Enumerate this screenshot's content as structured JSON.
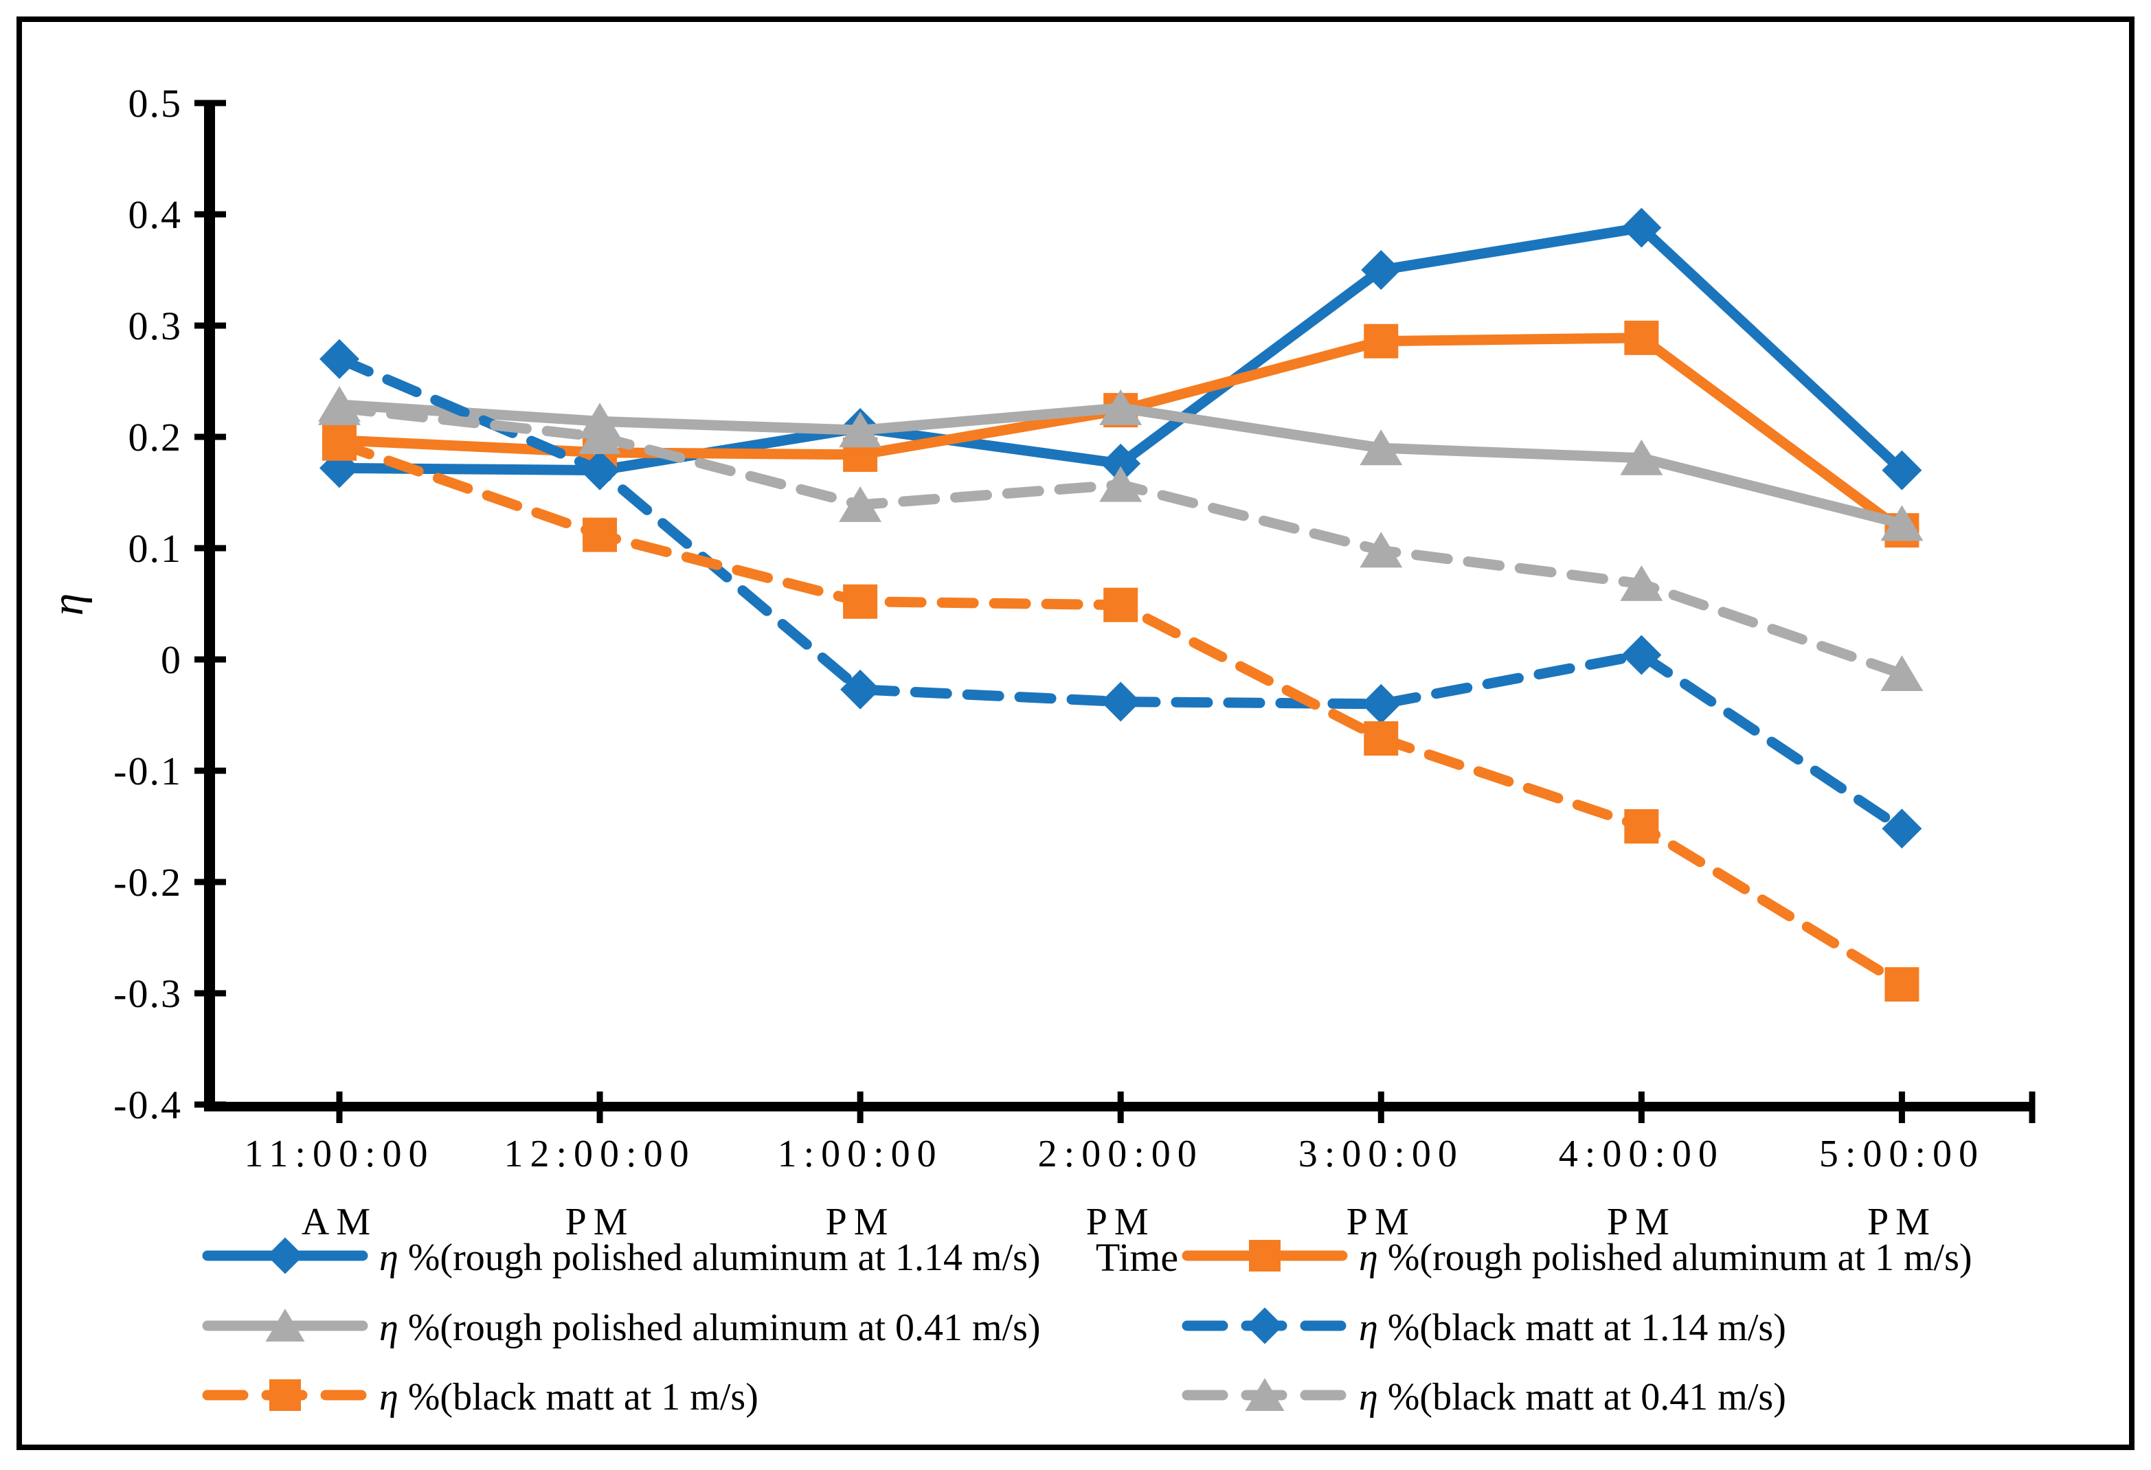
{
  "chart_data": {
    "type": "line",
    "title": "",
    "xlabel": "Time",
    "ylabel": "η",
    "ylim": [
      -0.4,
      0.5
    ],
    "ytick_interval": 0.1,
    "ytick_labels": [
      "0.5",
      "0.4",
      "0.3",
      "0.2",
      "0.1",
      "0",
      "-0.1",
      "-0.2",
      "-0.3",
      "-0.4"
    ],
    "categories": [
      {
        "time": "11:00:00",
        "meridiem": "AM"
      },
      {
        "time": "12:00:00",
        "meridiem": "PM"
      },
      {
        "time": "1:00:00",
        "meridiem": "PM"
      },
      {
        "time": "2:00:00",
        "meridiem": "PM"
      },
      {
        "time": "3:00:00",
        "meridiem": "PM"
      },
      {
        "time": "4:00:00",
        "meridiem": "PM"
      },
      {
        "time": "5:00:00",
        "meridiem": "PM"
      }
    ],
    "gridlines": false,
    "legend_position": "bottom-two-columns",
    "colors": {
      "blue": "#1B75BC",
      "orange": "#F57C20",
      "gray": "#ABABAB",
      "axis": "#000000"
    },
    "series": [
      {
        "name": "η %(rough polished aluminum at 1.14 m/s)",
        "color": "blue",
        "line": "solid",
        "marker": "diamond",
        "values": [
          0.172,
          0.17,
          0.208,
          0.176,
          0.35,
          0.388,
          0.17
        ]
      },
      {
        "name": "η %(rough polished aluminum at 1 m/s)",
        "color": "orange",
        "line": "solid",
        "marker": "square",
        "values": [
          0.197,
          0.186,
          0.184,
          0.224,
          0.286,
          0.289,
          0.116
        ]
      },
      {
        "name": "η %(rough polished aluminum at 0.41 m/s)",
        "color": "gray",
        "line": "solid",
        "marker": "triangle",
        "values": [
          0.229,
          0.214,
          0.206,
          0.226,
          0.19,
          0.181,
          0.122
        ]
      },
      {
        "name": "η %(black matt at 1.14 m/s)",
        "color": "blue",
        "line": "dashed",
        "marker": "diamond",
        "values": [
          0.27,
          0.17,
          -0.027,
          -0.038,
          -0.04,
          0.004,
          -0.152
        ]
      },
      {
        "name": "η %(black matt at 1 m/s)",
        "color": "orange",
        "line": "dashed",
        "marker": "square",
        "values": [
          0.194,
          0.112,
          0.052,
          0.049,
          -0.071,
          -0.15,
          -0.292
        ]
      },
      {
        "name": "η %(black matt at 0.41 m/s)",
        "color": "gray",
        "line": "dashed",
        "marker": "triangle",
        "values": [
          0.226,
          0.2,
          0.139,
          0.157,
          0.098,
          0.068,
          -0.013
        ]
      }
    ],
    "legend_rows": [
      [
        0,
        1
      ],
      [
        2,
        3
      ],
      [
        4,
        5
      ]
    ]
  }
}
